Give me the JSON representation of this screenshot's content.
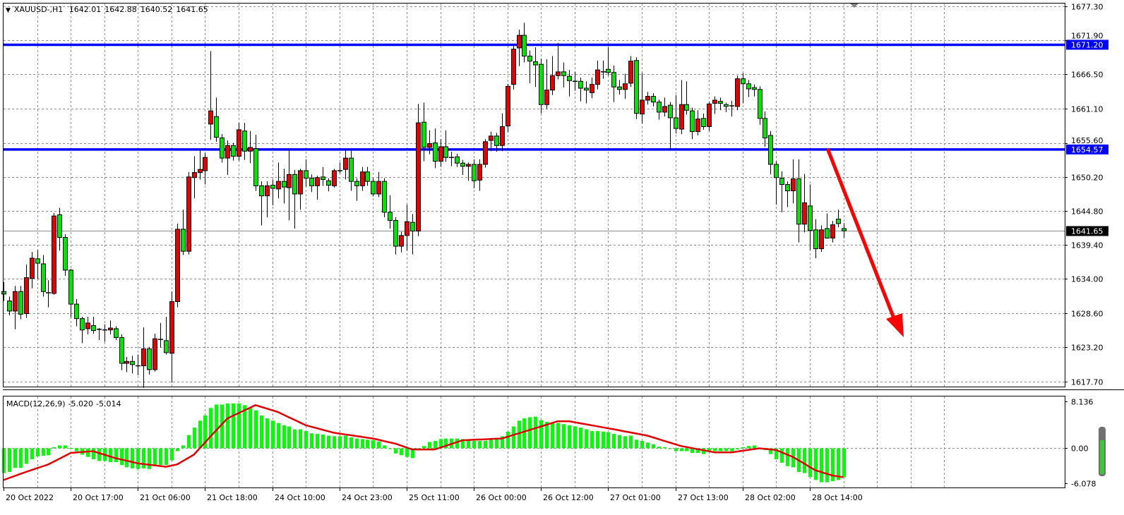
{
  "header": {
    "symbol": "XAUUSD-,H1",
    "open": "1642.01",
    "high": "1642.88",
    "low": "1640.52",
    "close": "1641.65",
    "menu_icon": "triangle-down-icon"
  },
  "chart_data": [
    {
      "type": "candlestick",
      "title": "XAUUSD-,H1",
      "ylim": [
        1616.9,
        1677.75
      ],
      "y_ticks": [
        "1677.30",
        "1671.90",
        "1666.50",
        "1661.10",
        "1655.60",
        "1650.20",
        "1644.80",
        "1639.40",
        "1634.00",
        "1628.60",
        "1623.20",
        "1617.70"
      ],
      "grid": true,
      "colors": {
        "up": "#e60000",
        "down": "#00e600",
        "outline": "#000000",
        "level_line": "#0000ff",
        "arrow": "#ff0000"
      },
      "horizontal_lines": [
        {
          "value": 1671.2,
          "label": "1671.20"
        },
        {
          "value": 1654.57,
          "label": "1654.57"
        }
      ],
      "current_price": {
        "value": 1641.65,
        "label": "1641.65"
      },
      "annotation": "red-down-arrow",
      "candles_ohlc": [
        [
          1632.0,
          1633.5,
          1630.5,
          1631.6
        ],
        [
          1630.5,
          1631.2,
          1628.2,
          1628.9
        ],
        [
          1628.9,
          1632.9,
          1626.0,
          1632.0
        ],
        [
          1632.0,
          1632.9,
          1627.6,
          1628.4
        ],
        [
          1628.5,
          1636.3,
          1627.8,
          1634.2
        ],
        [
          1634.1,
          1638.3,
          1632.5,
          1637.3
        ],
        [
          1637.2,
          1638.6,
          1634.0,
          1636.5
        ],
        [
          1636.4,
          1637.8,
          1631.2,
          1632.0
        ],
        [
          1631.8,
          1633.8,
          1629.5,
          1631.8
        ],
        [
          1631.7,
          1644.5,
          1631.5,
          1644.0
        ],
        [
          1644.2,
          1645.3,
          1638.5,
          1640.6
        ],
        [
          1640.6,
          1641.1,
          1634.5,
          1635.4
        ],
        [
          1635.4,
          1635.6,
          1627.9,
          1630.0
        ],
        [
          1630.0,
          1630.8,
          1626.5,
          1627.7
        ],
        [
          1627.7,
          1628.0,
          1623.8,
          1625.9
        ],
        [
          1626.1,
          1628.0,
          1625.2,
          1627.0
        ],
        [
          1626.6,
          1628.0,
          1625.3,
          1625.8
        ],
        [
          1626.0,
          1626.2,
          1624.3,
          1626.0
        ],
        [
          1625.9,
          1626.8,
          1624.0,
          1625.9
        ],
        [
          1625.9,
          1627.4,
          1625.2,
          1626.2
        ],
        [
          1626.1,
          1626.5,
          1624.3,
          1624.7
        ],
        [
          1624.7,
          1625.2,
          1619.5,
          1620.6
        ],
        [
          1620.6,
          1621.6,
          1619.2,
          1620.9
        ],
        [
          1620.9,
          1621.8,
          1619.0,
          1620.4
        ],
        [
          1620.2,
          1622.0,
          1618.7,
          1620.2
        ],
        [
          1620.2,
          1626.3,
          1616.7,
          1622.9
        ],
        [
          1622.9,
          1623.2,
          1618.8,
          1619.6
        ],
        [
          1619.6,
          1625.3,
          1619.3,
          1624.5
        ],
        [
          1624.4,
          1627.0,
          1623.1,
          1624.4
        ],
        [
          1624.2,
          1628.0,
          1622.0,
          1622.3
        ],
        [
          1622.2,
          1632.0,
          1617.5,
          1630.4
        ],
        [
          1630.4,
          1642.8,
          1629.5,
          1641.9
        ],
        [
          1641.9,
          1645.0,
          1637.8,
          1638.4
        ],
        [
          1638.4,
          1651.0,
          1637.9,
          1650.2
        ],
        [
          1650.1,
          1653.5,
          1646.8,
          1650.9
        ],
        [
          1650.9,
          1654.5,
          1649.8,
          1651.4
        ],
        [
          1651.2,
          1654.0,
          1649.0,
          1653.3
        ],
        [
          1658.6,
          1670.2,
          1656.1,
          1660.7
        ],
        [
          1659.8,
          1662.8,
          1655.8,
          1656.5
        ],
        [
          1656.4,
          1657.0,
          1652.5,
          1653.2
        ],
        [
          1653.2,
          1656.0,
          1650.5,
          1655.2
        ],
        [
          1655.2,
          1655.6,
          1652.8,
          1653.5
        ],
        [
          1653.5,
          1658.8,
          1652.8,
          1657.7
        ],
        [
          1657.5,
          1658.8,
          1652.9,
          1654.3
        ],
        [
          1654.3,
          1657.5,
          1652.4,
          1654.9
        ],
        [
          1654.7,
          1656.9,
          1648.0,
          1648.8
        ],
        [
          1648.8,
          1649.5,
          1642.5,
          1647.2
        ],
        [
          1647.2,
          1649.5,
          1643.8,
          1648.8
        ],
        [
          1648.9,
          1649.8,
          1645.7,
          1648.4
        ],
        [
          1648.3,
          1652.5,
          1646.8,
          1649.5
        ],
        [
          1649.5,
          1651.5,
          1646.0,
          1648.6
        ],
        [
          1648.5,
          1654.5,
          1643.3,
          1650.6
        ],
        [
          1650.6,
          1651.3,
          1642.0,
          1647.5
        ],
        [
          1647.5,
          1651.5,
          1645.0,
          1651.2
        ],
        [
          1651.2,
          1653.0,
          1648.7,
          1650.0
        ],
        [
          1650.0,
          1650.6,
          1647.8,
          1648.8
        ],
        [
          1648.8,
          1650.4,
          1646.6,
          1650.1
        ],
        [
          1650.2,
          1651.8,
          1648.8,
          1649.8
        ],
        [
          1649.6,
          1650.0,
          1647.9,
          1648.9
        ],
        [
          1648.8,
          1651.5,
          1648.5,
          1651.2
        ],
        [
          1651.2,
          1652.5,
          1650.8,
          1651.2
        ],
        [
          1651.4,
          1654.4,
          1649.8,
          1653.2
        ],
        [
          1653.2,
          1654.4,
          1648.0,
          1649.5
        ],
        [
          1649.5,
          1650.0,
          1646.4,
          1648.8
        ],
        [
          1648.8,
          1651.8,
          1648.0,
          1651.0
        ],
        [
          1651.0,
          1651.8,
          1648.8,
          1649.5
        ],
        [
          1649.5,
          1650.0,
          1647.1,
          1647.5
        ],
        [
          1647.5,
          1651.0,
          1647.0,
          1649.5
        ],
        [
          1649.5,
          1650.0,
          1643.8,
          1644.6
        ],
        [
          1644.6,
          1647.3,
          1642.0,
          1643.3
        ],
        [
          1643.3,
          1643.8,
          1637.9,
          1639.2
        ],
        [
          1639.2,
          1641.5,
          1638.2,
          1640.9
        ],
        [
          1640.9,
          1645.8,
          1638.5,
          1643.1
        ],
        [
          1643.0,
          1644.3,
          1637.9,
          1641.6
        ],
        [
          1641.6,
          1661.8,
          1640.8,
          1658.8
        ],
        [
          1658.9,
          1662.0,
          1652.7,
          1654.9
        ],
        [
          1654.9,
          1657.6,
          1653.8,
          1655.5
        ],
        [
          1655.6,
          1657.9,
          1651.6,
          1652.7
        ],
        [
          1652.7,
          1656.2,
          1651.8,
          1655.0
        ],
        [
          1655.0,
          1657.6,
          1652.6,
          1653.3
        ],
        [
          1653.3,
          1654.2,
          1651.9,
          1653.3
        ],
        [
          1653.4,
          1653.9,
          1651.8,
          1652.4
        ],
        [
          1652.4,
          1652.9,
          1650.5,
          1651.9
        ],
        [
          1651.9,
          1652.5,
          1649.6,
          1652.2
        ],
        [
          1652.2,
          1653.0,
          1648.4,
          1649.6
        ],
        [
          1649.7,
          1653.0,
          1648.0,
          1652.2
        ],
        [
          1652.2,
          1656.2,
          1651.7,
          1655.8
        ],
        [
          1656.0,
          1657.4,
          1654.3,
          1656.7
        ],
        [
          1656.7,
          1657.2,
          1654.2,
          1655.2
        ],
        [
          1655.2,
          1660.3,
          1654.3,
          1658.2
        ],
        [
          1658.3,
          1665.0,
          1657.3,
          1664.6
        ],
        [
          1664.9,
          1671.0,
          1664.1,
          1670.5
        ],
        [
          1670.7,
          1673.6,
          1667.8,
          1672.7
        ],
        [
          1672.7,
          1674.7,
          1668.4,
          1669.4
        ],
        [
          1669.4,
          1670.3,
          1665.1,
          1668.6
        ],
        [
          1668.5,
          1670.8,
          1664.5,
          1668.0
        ],
        [
          1668.1,
          1669.0,
          1660.3,
          1661.7
        ],
        [
          1661.7,
          1668.9,
          1661.0,
          1664.0
        ],
        [
          1664.0,
          1669.4,
          1663.2,
          1666.3
        ],
        [
          1666.3,
          1671.5,
          1665.7,
          1666.9
        ],
        [
          1666.9,
          1668.4,
          1664.4,
          1666.3
        ],
        [
          1666.2,
          1667.2,
          1663.0,
          1665.5
        ],
        [
          1665.4,
          1666.9,
          1663.9,
          1665.4
        ],
        [
          1665.4,
          1666.0,
          1662.2,
          1664.3
        ],
        [
          1664.3,
          1665.4,
          1661.9,
          1664.0
        ],
        [
          1663.6,
          1666.0,
          1662.7,
          1664.9
        ],
        [
          1664.9,
          1668.7,
          1664.1,
          1667.2
        ],
        [
          1666.9,
          1668.7,
          1665.8,
          1666.9
        ],
        [
          1667.3,
          1670.8,
          1666.3,
          1666.8
        ],
        [
          1666.8,
          1667.9,
          1662.1,
          1664.5
        ],
        [
          1664.5,
          1665.6,
          1663.3,
          1664.1
        ],
        [
          1664.1,
          1666.6,
          1662.6,
          1665.0
        ],
        [
          1665.1,
          1669.4,
          1664.5,
          1668.6
        ],
        [
          1668.7,
          1669.2,
          1659.4,
          1660.3
        ],
        [
          1660.2,
          1666.7,
          1658.7,
          1662.4
        ],
        [
          1662.4,
          1663.7,
          1661.7,
          1663.0
        ],
        [
          1663.0,
          1663.5,
          1661.4,
          1662.1
        ],
        [
          1662.1,
          1662.5,
          1659.3,
          1660.5
        ],
        [
          1660.5,
          1662.8,
          1659.8,
          1661.4
        ],
        [
          1661.6,
          1662.1,
          1654.5,
          1659.6
        ],
        [
          1659.6,
          1663.2,
          1657.1,
          1657.9
        ],
        [
          1657.8,
          1665.6,
          1657.0,
          1661.7
        ],
        [
          1661.7,
          1665.4,
          1660.1,
          1660.8
        ],
        [
          1660.7,
          1661.2,
          1656.2,
          1657.4
        ],
        [
          1657.4,
          1660.8,
          1656.8,
          1659.4
        ],
        [
          1659.5,
          1660.3,
          1657.7,
          1658.2
        ],
        [
          1658.2,
          1662.1,
          1657.5,
          1661.8
        ],
        [
          1661.9,
          1663.0,
          1660.2,
          1662.4
        ],
        [
          1662.2,
          1662.8,
          1660.8,
          1661.9
        ],
        [
          1661.7,
          1662.0,
          1660.5,
          1661.4
        ],
        [
          1661.5,
          1662.3,
          1659.8,
          1661.5
        ],
        [
          1661.4,
          1666.3,
          1660.8,
          1665.8
        ],
        [
          1665.8,
          1666.7,
          1661.9,
          1665.0
        ],
        [
          1665.0,
          1665.6,
          1662.9,
          1664.2
        ],
        [
          1664.4,
          1664.9,
          1663.0,
          1664.1
        ],
        [
          1664.1,
          1664.6,
          1658.5,
          1659.5
        ],
        [
          1659.5,
          1660.6,
          1655.0,
          1656.4
        ],
        [
          1656.8,
          1657.5,
          1650.6,
          1652.2
        ],
        [
          1652.2,
          1652.7,
          1645.8,
          1650.1
        ],
        [
          1650.0,
          1651.1,
          1644.6,
          1649.0
        ],
        [
          1649.0,
          1649.5,
          1645.4,
          1648.0
        ],
        [
          1648.0,
          1653.0,
          1646.0,
          1649.9
        ],
        [
          1649.9,
          1653.0,
          1639.8,
          1642.7
        ],
        [
          1642.7,
          1650.7,
          1641.4,
          1646.1
        ],
        [
          1645.6,
          1649.0,
          1638.6,
          1641.7
        ],
        [
          1641.8,
          1643.5,
          1637.3,
          1638.8
        ],
        [
          1638.8,
          1642.5,
          1638.3,
          1641.8
        ],
        [
          1642.0,
          1644.4,
          1640.4,
          1640.5
        ],
        [
          1640.5,
          1643.2,
          1639.8,
          1642.6
        ],
        [
          1643.5,
          1645.0,
          1642.2,
          1642.8
        ],
        [
          1642.01,
          1642.88,
          1640.52,
          1641.65
        ]
      ]
    },
    {
      "type": "bar+line",
      "title": "MACD(12,26,9)",
      "macd_value": "-5.020",
      "signal_value": "-5.014",
      "ylim": [
        -6.8,
        9.0
      ],
      "y_ticks": [
        "8.136",
        "0.00",
        "-6.078"
      ],
      "y_tick_values": [
        8.136,
        0,
        -6.078
      ],
      "colors": {
        "histogram": "#00ff00",
        "signal": "#e00000"
      },
      "histogram": [
        -4.3,
        -4.1,
        -3.4,
        -3.4,
        -2.7,
        -1.9,
        -1.4,
        -1.3,
        -1.2,
        0.2,
        0.5,
        0.5,
        0.05,
        -0.5,
        -1.1,
        -1.5,
        -1.9,
        -2.2,
        -2.2,
        -2.4,
        -2.4,
        -2.9,
        -3.3,
        -3.5,
        -3.6,
        -3.5,
        -3.6,
        -3.0,
        -2.9,
        -2.9,
        -2.1,
        -0.5,
        0.5,
        2.3,
        3.6,
        4.8,
        5.7,
        7.0,
        7.6,
        7.6,
        7.8,
        7.8,
        7.8,
        7.5,
        7.1,
        6.6,
        5.7,
        5.2,
        4.8,
        4.4,
        4.0,
        3.8,
        3.3,
        3.3,
        3.0,
        2.6,
        2.5,
        2.4,
        2.2,
        2.1,
        2.1,
        2.2,
        1.9,
        1.7,
        1.6,
        1.5,
        1.4,
        1.2,
        0.5,
        0.0,
        -0.9,
        -1.2,
        -1.5,
        -1.7,
        0.0,
        0.4,
        1.1,
        1.3,
        1.6,
        1.7,
        1.7,
        1.7,
        1.6,
        1.4,
        1.3,
        1.3,
        1.3,
        1.6,
        1.8,
        2.1,
        2.9,
        3.8,
        4.8,
        5.2,
        5.4,
        5.5,
        4.9,
        4.6,
        4.5,
        4.4,
        4.2,
        4.0,
        3.8,
        3.6,
        3.3,
        3.0,
        3.0,
        2.9,
        2.8,
        2.5,
        2.3,
        2.1,
        2.2,
        1.5,
        1.3,
        1.0,
        0.7,
        0.3,
        0.2,
        -0.1,
        -0.5,
        -0.5,
        -0.5,
        -0.8,
        -0.8,
        -1.0,
        -0.6,
        -0.5,
        -0.5,
        -0.5,
        -0.5,
        -0.2,
        0.2,
        0.4,
        0.5,
        0.0,
        -0.3,
        -1.0,
        -1.9,
        -2.5,
        -3.1,
        -3.3,
        -4.1,
        -4.3,
        -5.0,
        -5.5,
        -5.9,
        -5.9,
        -5.7,
        -5.5,
        -5.02
      ],
      "signal": [
        -5.5,
        -5.15,
        -4.8,
        -4.45,
        -4.1,
        -3.78,
        -3.45,
        -3.13,
        -2.8,
        -2.3,
        -1.8,
        -1.3,
        -0.8,
        -0.72,
        -0.65,
        -0.57,
        -0.5,
        -0.8,
        -1.1,
        -1.4,
        -1.7,
        -1.93,
        -2.15,
        -2.38,
        -2.6,
        -2.72,
        -2.84,
        -2.96,
        -3.08,
        -3.2,
        -3.0,
        -2.8,
        -2.23,
        -1.67,
        -1.1,
        -0.03,
        1.03,
        2.1,
        3.13,
        4.17,
        5.2,
        5.66,
        6.12,
        6.58,
        7.04,
        7.5,
        7.2,
        6.9,
        6.6,
        6.3,
        5.84,
        5.38,
        4.92,
        4.46,
        4.0,
        3.74,
        3.48,
        3.22,
        2.96,
        2.7,
        2.56,
        2.41,
        2.27,
        2.13,
        1.99,
        1.84,
        1.7,
        1.48,
        1.25,
        1.03,
        0.8,
        0.47,
        0.13,
        -0.2,
        -0.2,
        -0.2,
        -0.2,
        -0.2,
        0.12,
        0.44,
        0.76,
        1.08,
        1.4,
        1.44,
        1.49,
        1.53,
        1.57,
        1.61,
        1.66,
        1.7,
        2.0,
        2.3,
        2.6,
        2.9,
        3.2,
        3.5,
        3.8,
        4.1,
        4.4,
        4.7,
        4.7,
        4.7,
        4.53,
        4.35,
        4.18,
        4.0,
        3.83,
        3.65,
        3.48,
        3.3,
        3.12,
        2.93,
        2.75,
        2.57,
        2.38,
        2.2,
        1.9,
        1.6,
        1.3,
        1.0,
        0.7,
        0.4,
        0.22,
        0.03,
        -0.15,
        -0.33,
        -0.52,
        -0.7,
        -0.7,
        -0.7,
        -0.7,
        -0.56,
        -0.42,
        -0.28,
        -0.14,
        0,
        -0.1,
        -0.2,
        -0.3,
        -0.7,
        -1.1,
        -1.5,
        -2.08,
        -2.65,
        -3.23,
        -3.8,
        -4.1,
        -4.4,
        -4.7,
        -4.86,
        -5.014
      ]
    }
  ],
  "time_axis": {
    "labels": [
      "20 Oct 2022",
      "20 Oct 17:00",
      "21 Oct 06:00",
      "21 Oct 18:00",
      "24 Oct 10:00",
      "24 Oct 23:00",
      "25 Oct 11:00",
      "26 Oct 00:00",
      "26 Oct 12:00",
      "27 Oct 01:00",
      "27 Oct 13:00",
      "28 Oct 02:00",
      "28 Oct 14:00"
    ]
  }
}
